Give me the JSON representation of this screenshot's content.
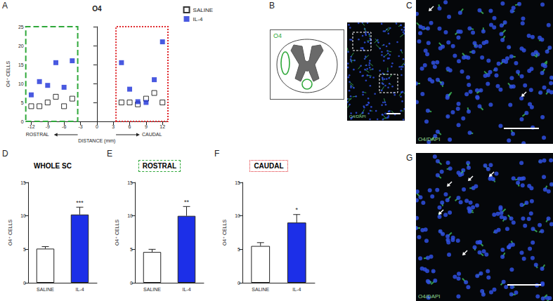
{
  "panel_labels": [
    "A",
    "B",
    "C",
    "D",
    "E",
    "F",
    "G"
  ],
  "chart_data": [
    {
      "type": "scatter",
      "title": "O4",
      "x_label": "DISTANCE (mm)",
      "y_label": "O4⁺ CELLS",
      "xlim": [
        -13,
        13
      ],
      "xticks": [
        -12,
        -9,
        -6,
        -3,
        0,
        3,
        6,
        9,
        12
      ],
      "ylim": [
        0,
        25
      ],
      "yticks": [
        0,
        5,
        10,
        15,
        20,
        25
      ],
      "legend": "top-right",
      "grid": false,
      "series": [
        {
          "name": "SALINE",
          "color": "#000000",
          "marker": "open-square",
          "x": [
            -12,
            -10.5,
            -9,
            -7.5,
            -6,
            -4.5,
            4.5,
            6,
            7.5,
            9,
            10.5,
            12
          ],
          "values": [
            4,
            4,
            5,
            6.5,
            4,
            6,
            5,
            5,
            4.5,
            6,
            7.5,
            5
          ]
        },
        {
          "name": "IL-4",
          "color": "#1c2fd8",
          "marker": "square",
          "x": [
            -12,
            -10.5,
            -9,
            -7.5,
            -6,
            -4.5,
            4.5,
            6,
            7.5,
            9,
            10.5,
            12
          ],
          "values": [
            7,
            10.5,
            9.5,
            15.5,
            9,
            16,
            15.5,
            8.5,
            5.2,
            5,
            11,
            21
          ]
        }
      ],
      "regions": [
        {
          "name": "ROSTRAL",
          "xlim": [
            -13,
            -3.5
          ],
          "color": "#2fa83a",
          "line_style": "dashed"
        },
        {
          "name": "CAUDAL",
          "xlim": [
            3.5,
            13
          ],
          "color": "#e0262b",
          "line_style": "dotted"
        }
      ]
    },
    {
      "type": "bar",
      "title": "WHOLE SC",
      "y_label": "O4⁺ CELLS",
      "categories": [
        "SALINE",
        "IL-4"
      ],
      "values": [
        5.1,
        10.2
      ],
      "errors": [
        0.3,
        1.1
      ],
      "colors": [
        "#ffffff",
        "#1c2fe8"
      ],
      "ylim": [
        0,
        15
      ],
      "yticks": [
        0,
        5,
        10,
        15
      ],
      "annotations": [
        {
          "category": "IL-4",
          "text": "***"
        }
      ]
    },
    {
      "type": "bar",
      "title": "ROSTRAL",
      "y_label": "O4⁺ CELLS",
      "categories": [
        "SALINE",
        "IL-4"
      ],
      "values": [
        4.6,
        10.0
      ],
      "errors": [
        0.4,
        1.4
      ],
      "colors": [
        "#ffffff",
        "#1c2fe8"
      ],
      "ylim": [
        0,
        15
      ],
      "yticks": [
        0,
        5,
        10,
        15
      ],
      "annotations": [
        {
          "category": "IL-4",
          "text": "**"
        }
      ]
    },
    {
      "type": "bar",
      "title": "CAUDAL",
      "y_label": "O4⁺ CELLS",
      "categories": [
        "SALINE",
        "IL-4"
      ],
      "values": [
        5.5,
        9.0
      ],
      "errors": [
        0.5,
        1.2
      ],
      "colors": [
        "#ffffff",
        "#1c2fe8"
      ],
      "ylim": [
        0,
        15
      ],
      "yticks": [
        0,
        5,
        10,
        15
      ],
      "annotations": [
        {
          "category": "IL-4",
          "text": "*"
        }
      ]
    }
  ],
  "schematic": {
    "label": "O4",
    "color": "#2fa83a"
  },
  "micrographs": [
    {
      "label": "O4/DAPI"
    },
    {
      "label": "O4/DAPI"
    },
    {
      "label": "O4/DAPI"
    }
  ]
}
